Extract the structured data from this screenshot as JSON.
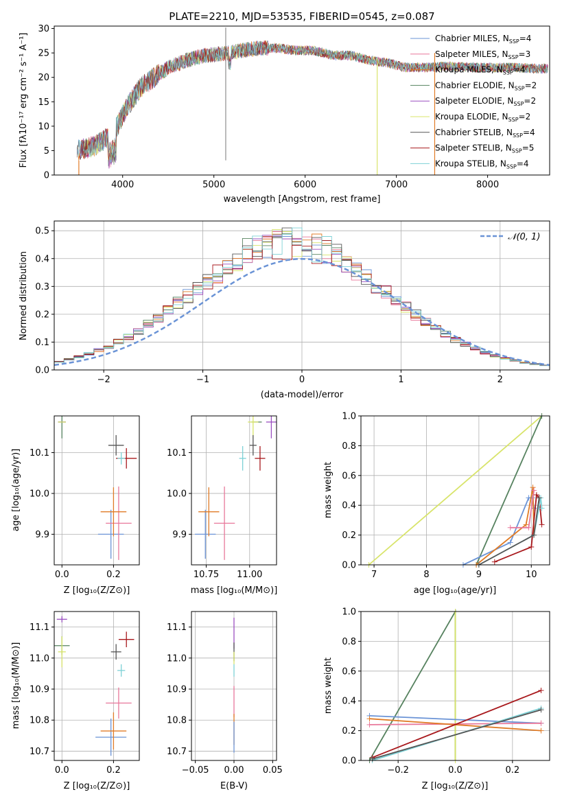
{
  "title": "PLATE=2210, MJD=53535, FIBERID=0545, z=0.087",
  "colors": {
    "chabrier_miles": "#6a93d6",
    "salpeter_miles": "#e8779a",
    "kroupa_miles": "#e07b26",
    "chabrier_elodie": "#56825f",
    "salpeter_elodie": "#9a4fc0",
    "kroupa_elodie": "#d8e46a",
    "chabrier_stelib": "#555555",
    "salpeter_stelib": "#a8181c",
    "kroupa_stelib": "#7dd1d6",
    "normal_curve": "#6a93d6"
  },
  "chart_data": [
    {
      "id": "spectrum",
      "type": "line",
      "xlabel": "wavelength [Angstrom, rest frame]",
      "ylabel": "Flux [fλ10⁻¹⁷ erg cm⁻² s⁻¹ A⁻¹]",
      "xlim": [
        3250,
        8680
      ],
      "ylim": [
        0,
        30.5
      ],
      "xticks": [
        4000,
        5000,
        6000,
        7000,
        8000
      ],
      "yticks": [
        0,
        5,
        10,
        15,
        20,
        25,
        30
      ],
      "legend_position": "upper-right",
      "legend": [
        "Chabrier MILES, N_SSP=4",
        "Salpeter MILES, N_SSP=3",
        "Kroupa MILES, N_SSP=4",
        "Chabrier ELODIE, N_SSP=2",
        "Salpeter ELODIE, N_SSP=2",
        "Kroupa ELODIE, N_SSP=2",
        "Chabrier STELIB, N_SSP=4",
        "Salpeter STELIB, N_SSP=5",
        "Kroupa STELIB, N_SSP=4"
      ],
      "shape_x": [
        3500,
        3700,
        3900,
        4050,
        4200,
        4350,
        4500,
        4700,
        4900,
        5100,
        5300,
        5500,
        5700,
        5900,
        6100,
        6300,
        6500,
        6700,
        6900,
        7100,
        7300,
        7500,
        7700,
        7900,
        8100,
        8300,
        8500,
        8660
      ],
      "shape_y": [
        5,
        6,
        8.5,
        14,
        18,
        20,
        22,
        23.5,
        24.5,
        24.8,
        25.5,
        26,
        26,
        25.5,
        25.5,
        24.5,
        24.5,
        23.5,
        23,
        22,
        22,
        22.2,
        22.2,
        22,
        22,
        22,
        21.8,
        21.8
      ]
    },
    {
      "id": "residual_hist",
      "type": "histogram",
      "xlabel": "(data-model)/error",
      "ylabel": "Normed distribution",
      "xlim": [
        -2.5,
        2.5
      ],
      "ylim": [
        0,
        0.535
      ],
      "xticks": [
        -2,
        -1,
        0,
        1,
        2
      ],
      "yticks": [
        0,
        0.1,
        0.2,
        0.3,
        0.4,
        0.5
      ],
      "grid": true,
      "legend_position": "upper-right",
      "legend": [
        "𝒩(0, 1)"
      ],
      "curve": "normal(0,1)"
    },
    {
      "id": "age_vs_Z",
      "type": "errorbar",
      "xlabel": "Z [log₁₀(Z/Z⊙)]",
      "ylabel": "age  [log₁₀(age/yr)]",
      "xlim": [
        -0.03,
        0.3
      ],
      "ylim": [
        9.825,
        10.19
      ],
      "xticks": [
        0.0,
        0.2
      ],
      "yticks": [
        9.9,
        10.0,
        10.1
      ],
      "grid": true,
      "points": [
        {
          "series": "chabrier_miles",
          "x": 0.19,
          "y": 9.9,
          "xerr": 0.05,
          "yerr": 0.06
        },
        {
          "series": "salpeter_miles",
          "x": 0.22,
          "y": 9.927,
          "xerr": 0.05,
          "yerr": 0.09
        },
        {
          "series": "kroupa_miles",
          "x": 0.2,
          "y": 9.955,
          "xerr": 0.05,
          "yerr": 0.06
        },
        {
          "series": "chabrier_elodie",
          "x": 0.0,
          "y": 10.175,
          "xerr": 0.015,
          "yerr": 0.04
        },
        {
          "series": "salpeter_elodie",
          "x": 0.0,
          "y": 10.175,
          "xerr": 0.015,
          "yerr": 0.0
        },
        {
          "series": "kroupa_elodie",
          "x": 0.0,
          "y": 10.175,
          "xerr": 0.015,
          "yerr": 0.0
        },
        {
          "series": "chabrier_stelib",
          "x": 0.21,
          "y": 10.118,
          "xerr": 0.03,
          "yerr": 0.025
        },
        {
          "series": "salpeter_stelib",
          "x": 0.25,
          "y": 10.086,
          "xerr": 0.04,
          "yerr": 0.025
        },
        {
          "series": "kroupa_stelib",
          "x": 0.23,
          "y": 10.086,
          "xerr": 0.015,
          "yerr": 0.015
        }
      ]
    },
    {
      "id": "age_vs_mass",
      "type": "errorbar",
      "xlabel": "mass [log₁₀(M/M⊙)]",
      "ylabel": "",
      "xlim": [
        10.665,
        11.155
      ],
      "ylim": [
        9.825,
        10.19
      ],
      "xticks": [
        10.75,
        11.0
      ],
      "yticks": [
        9.9,
        10.0,
        10.1
      ],
      "grid": true,
      "points": [
        {
          "series": "chabrier_miles",
          "x": 10.745,
          "y": 9.9,
          "xerr": 0.06,
          "yerr": 0.06
        },
        {
          "series": "salpeter_miles",
          "x": 10.855,
          "y": 9.927,
          "xerr": 0.06,
          "yerr": 0.09
        },
        {
          "series": "kroupa_miles",
          "x": 10.765,
          "y": 9.955,
          "xerr": 0.06,
          "yerr": 0.06
        },
        {
          "series": "chabrier_elodie",
          "x": 11.04,
          "y": 10.175,
          "xerr": 0.03,
          "yerr": 0.0
        },
        {
          "series": "salpeter_elodie",
          "x": 11.125,
          "y": 10.175,
          "xerr": 0.03,
          "yerr": 0.04
        },
        {
          "series": "kroupa_elodie",
          "x": 11.02,
          "y": 10.175,
          "xerr": 0.03,
          "yerr": 0.04
        },
        {
          "series": "chabrier_stelib",
          "x": 11.02,
          "y": 10.118,
          "xerr": 0.02,
          "yerr": 0.025
        },
        {
          "series": "salpeter_stelib",
          "x": 11.06,
          "y": 10.086,
          "xerr": 0.03,
          "yerr": 0.03
        },
        {
          "series": "kroupa_stelib",
          "x": 10.96,
          "y": 10.086,
          "xerr": 0.02,
          "yerr": 0.03
        }
      ]
    },
    {
      "id": "massweight_vs_age",
      "type": "line",
      "xlabel": "age  [log₁₀(age/yr)]",
      "ylabel": "mass weight",
      "xlim": [
        6.75,
        10.35
      ],
      "ylim": [
        0,
        1.0
      ],
      "xticks": [
        7,
        8,
        9,
        10
      ],
      "yticks": [
        0.0,
        0.2,
        0.4,
        0.6,
        0.8,
        1.0
      ],
      "grid": true,
      "series": [
        {
          "key": "kroupa_elodie",
          "x": [
            6.9,
            10.2
          ],
          "y": [
            0.0,
            1.0
          ]
        },
        {
          "key": "chabrier_elodie",
          "x": [
            8.95,
            10.2
          ],
          "y": [
            0.0,
            1.0
          ]
        },
        {
          "key": "chabrier_miles",
          "x": [
            8.7,
            9.6,
            9.95,
            10.02,
            10.05
          ],
          "y": [
            0.0,
            0.15,
            0.45,
            0.45,
            0.38
          ]
        },
        {
          "key": "kroupa_miles",
          "x": [
            8.95,
            9.9,
            10.03,
            10.05
          ],
          "y": [
            0.0,
            0.27,
            0.52,
            0.2
          ]
        },
        {
          "key": "salpeter_miles",
          "x": [
            9.6,
            9.95,
            10.05
          ],
          "y": [
            0.25,
            0.25,
            0.5
          ]
        },
        {
          "key": "salpeter_stelib",
          "x": [
            9.3,
            10.0,
            10.1,
            10.15,
            10.2
          ],
          "y": [
            0.02,
            0.12,
            0.47,
            0.45,
            0.27
          ]
        },
        {
          "key": "kroupa_stelib",
          "x": [
            9.0,
            10.05,
            10.18,
            10.2
          ],
          "y": [
            0.0,
            0.2,
            0.45,
            0.38
          ]
        },
        {
          "key": "chabrier_stelib",
          "x": [
            9.0,
            10.05,
            10.15
          ],
          "y": [
            0.0,
            0.2,
            0.45
          ]
        }
      ]
    },
    {
      "id": "mass_vs_Z",
      "type": "errorbar",
      "xlabel": "Z [log₁₀(Z/Z⊙)]",
      "ylabel": "mass [log₁₀(M/M⊙)]",
      "xlim": [
        -0.03,
        0.3
      ],
      "ylim": [
        10.67,
        11.15
      ],
      "xticks": [
        0.0,
        0.2
      ],
      "yticks": [
        10.7,
        10.8,
        10.9,
        11.0,
        11.1
      ],
      "grid": true,
      "points": [
        {
          "series": "chabrier_miles",
          "x": 0.19,
          "y": 10.745,
          "xerr": 0.06,
          "yerr": 0.06
        },
        {
          "series": "salpeter_miles",
          "x": 0.22,
          "y": 10.855,
          "xerr": 0.05,
          "yerr": 0.05
        },
        {
          "series": "kroupa_miles",
          "x": 0.2,
          "y": 10.765,
          "xerr": 0.05,
          "yerr": 0.06
        },
        {
          "series": "chabrier_elodie",
          "x": 0.0,
          "y": 11.04,
          "xerr": 0.03,
          "yerr": 0.03
        },
        {
          "series": "salpeter_elodie",
          "x": 0.0,
          "y": 11.125,
          "xerr": 0.02,
          "yerr": 0.01
        },
        {
          "series": "kroupa_elodie",
          "x": 0.0,
          "y": 11.02,
          "xerr": 0.015,
          "yerr": 0.05
        },
        {
          "series": "chabrier_stelib",
          "x": 0.21,
          "y": 11.02,
          "xerr": 0.02,
          "yerr": 0.025
        },
        {
          "series": "salpeter_stelib",
          "x": 0.25,
          "y": 11.06,
          "xerr": 0.03,
          "yerr": 0.025
        },
        {
          "series": "kroupa_stelib",
          "x": 0.23,
          "y": 10.96,
          "xerr": 0.015,
          "yerr": 0.02
        }
      ]
    },
    {
      "id": "mass_vs_ebv",
      "type": "errorbar",
      "xlabel": "E(B-V)",
      "ylabel": "",
      "xlim": [
        -0.055,
        0.055
      ],
      "ylim": [
        10.67,
        11.15
      ],
      "xticks": [
        -0.05,
        0.0,
        0.05
      ],
      "yticks": [
        10.7,
        10.8,
        10.9,
        11.0,
        11.1
      ],
      "grid": true,
      "points": [
        {
          "series": "salpeter_elodie",
          "x": 0.0,
          "y": 11.08,
          "xerr": 0.0,
          "yerr": 0.05
        },
        {
          "series": "chabrier_stelib",
          "x": 0.0,
          "y": 11.02,
          "xerr": 0.0,
          "yerr": 0.03
        },
        {
          "series": "kroupa_elodie",
          "x": 0.0,
          "y": 11.0,
          "xerr": 0.0,
          "yerr": 0.02
        },
        {
          "series": "kroupa_stelib",
          "x": 0.0,
          "y": 10.96,
          "xerr": 0.0,
          "yerr": 0.02
        },
        {
          "series": "salpeter_miles",
          "x": 0.0,
          "y": 10.86,
          "xerr": 0.0,
          "yerr": 0.05
        },
        {
          "series": "kroupa_miles",
          "x": 0.0,
          "y": 10.77,
          "xerr": 0.0,
          "yerr": 0.05
        },
        {
          "series": "chabrier_miles",
          "x": 0.0,
          "y": 10.745,
          "xerr": 0.0,
          "yerr": 0.05
        }
      ]
    },
    {
      "id": "massweight_vs_Z",
      "type": "line",
      "xlabel": "Z [log₁₀(Z/Z⊙)]",
      "ylabel": "mass weight",
      "xlim": [
        -0.33,
        0.33
      ],
      "ylim": [
        0,
        1.0
      ],
      "xticks": [
        -0.2,
        0.0,
        0.2
      ],
      "yticks": [
        0.0,
        0.2,
        0.4,
        0.6,
        0.8,
        1.0
      ],
      "grid": true,
      "series": [
        {
          "key": "chabrier_elodie",
          "x": [
            -0.3,
            0.0,
            0.0
          ],
          "y": [
            0.0,
            1.0,
            0.0
          ]
        },
        {
          "key": "kroupa_elodie",
          "x": [
            0.0,
            0.0
          ],
          "y": [
            0.0,
            1.0
          ]
        },
        {
          "key": "chabrier_miles",
          "x": [
            -0.3,
            0.3
          ],
          "y": [
            0.3,
            0.25
          ]
        },
        {
          "key": "salpeter_miles",
          "x": [
            -0.3,
            0.3
          ],
          "y": [
            0.24,
            0.25
          ]
        },
        {
          "key": "kroupa_miles",
          "x": [
            -0.3,
            0.3
          ],
          "y": [
            0.28,
            0.2
          ]
        },
        {
          "key": "salpeter_stelib",
          "x": [
            -0.29,
            0.3
          ],
          "y": [
            0.02,
            0.47
          ]
        },
        {
          "key": "kroupa_stelib",
          "x": [
            -0.29,
            0.3
          ],
          "y": [
            0.0,
            0.35
          ]
        },
        {
          "key": "chabrier_stelib",
          "x": [
            -0.29,
            0.3
          ],
          "y": [
            0.01,
            0.34
          ]
        }
      ]
    }
  ]
}
